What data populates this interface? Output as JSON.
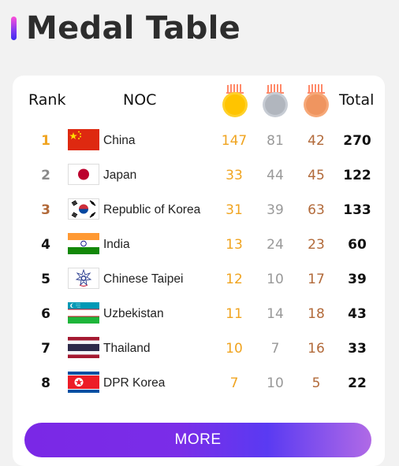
{
  "title": "Medal Table",
  "table": {
    "headers": {
      "rank": "Rank",
      "noc": "NOC",
      "total": "Total"
    },
    "medal_icons": [
      "gold-medal-icon",
      "silver-medal-icon",
      "bronze-medal-icon"
    ],
    "rows": [
      {
        "rank": "1",
        "country": "China",
        "gold": "147",
        "silver": "81",
        "bronze": "42",
        "total": "270"
      },
      {
        "rank": "2",
        "country": "Japan",
        "gold": "33",
        "silver": "44",
        "bronze": "45",
        "total": "122"
      },
      {
        "rank": "3",
        "country": "Republic of Korea",
        "gold": "31",
        "silver": "39",
        "bronze": "63",
        "total": "133"
      },
      {
        "rank": "4",
        "country": "India",
        "gold": "13",
        "silver": "24",
        "bronze": "23",
        "total": "60"
      },
      {
        "rank": "5",
        "country": "Chinese Taipei",
        "gold": "12",
        "silver": "10",
        "bronze": "17",
        "total": "39"
      },
      {
        "rank": "6",
        "country": "Uzbekistan",
        "gold": "11",
        "silver": "14",
        "bronze": "18",
        "total": "43"
      },
      {
        "rank": "7",
        "country": "Thailand",
        "gold": "10",
        "silver": "7",
        "bronze": "16",
        "total": "33"
      },
      {
        "rank": "8",
        "country": "DPR Korea",
        "gold": "7",
        "silver": "10",
        "bronze": "5",
        "total": "22"
      }
    ]
  },
  "more_label": "MORE",
  "colors": {
    "gold": "#f0a420",
    "silver": "#999999",
    "bronze": "#b26a3a",
    "rank_1": "#f0a420",
    "rank_2": "#8a8a8a",
    "rank_3": "#b26a3a",
    "accent": "#7a28e6"
  }
}
